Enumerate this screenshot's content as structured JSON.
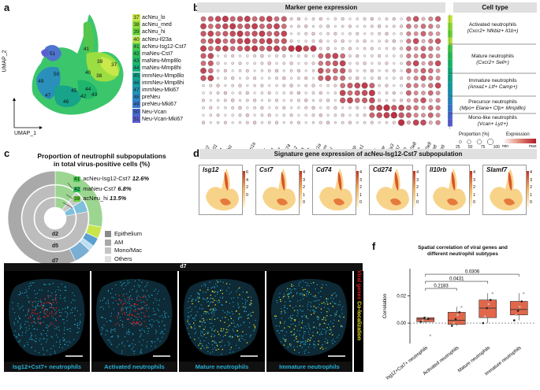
{
  "panels": {
    "a": "a",
    "b": "b",
    "c": "c",
    "d": "d",
    "e": "e",
    "f": "f"
  },
  "umap": {
    "xlabel": "UMAP_1",
    "ylabel": "UMAP_2",
    "clusters": [
      {
        "num": "37",
        "name": "acNeu_lo",
        "color": "#c8e64a"
      },
      {
        "num": "38",
        "name": "acNeu_med",
        "color": "#8fdc3e"
      },
      {
        "num": "39",
        "name": "acNeu_hi",
        "color": "#6bd43c"
      },
      {
        "num": "40",
        "name": "acNeu-Il23a",
        "color": "#b7e24a"
      },
      {
        "num": "41",
        "name": "acNeu-Isg12-Cst7",
        "color": "#48c850"
      },
      {
        "num": "42",
        "name": "maNeu-Cst7",
        "color": "#2fbd5a"
      },
      {
        "num": "43",
        "name": "maNeu-Mmp8lo",
        "color": "#20b86a"
      },
      {
        "num": "44",
        "name": "maNeu-Mmp8hi",
        "color": "#16ae7a"
      },
      {
        "num": "45",
        "name": "immNeu-Mmp8lo",
        "color": "#14a58c"
      },
      {
        "num": "46",
        "name": "immNeu-Mmp8hi",
        "color": "#1a9ea0"
      },
      {
        "num": "47",
        "name": "immNeu-Mki67",
        "color": "#2294b2"
      },
      {
        "num": "48",
        "name": "preNeu",
        "color": "#2d88c4"
      },
      {
        "num": "49",
        "name": "preNeu-Mki67",
        "color": "#3a78cc"
      },
      {
        "num": "50",
        "name": "Neu-Vcan",
        "color": "#4a6ad0"
      },
      {
        "num": "51",
        "name": "Neu-Vcan-Mki67",
        "color": "#5a5fd0"
      }
    ]
  },
  "dotplot": {
    "title": "Marker gene expression",
    "celltype_title": "Cell type",
    "genes": [
      "Cxcr2",
      "Cd101",
      "Ccl4",
      "Nfkbiz",
      "Il1b",
      "Fos",
      "Cdkn1a",
      "Tnf",
      "Il1rn",
      "Arg1",
      "Cst7",
      "Cd274",
      "Isg12",
      "Il23a",
      "Ccl3",
      "Fcgr1a",
      "Mgam",
      "Jaml",
      "Sell",
      "Ctlb",
      "Camp",
      "Anxa1",
      "Ltf",
      "Mpo",
      "Elane",
      "Ms4a3",
      "Mki67",
      "Vcan",
      "S100a8",
      "Lyz2",
      "S100a9",
      "Mmp8",
      "Mmp9"
    ],
    "celltypes": [
      {
        "name": "Activated neutrophils",
        "markers": "(Cxcr2+ Nfkbiz+ Il1b+)"
      },
      {
        "name": "Mature neutrophils",
        "markers": "(Cxcr2+ Sell+)"
      },
      {
        "name": "Immature neutrophils",
        "markers": "(Anxa1+ Ltf+ Camp+)"
      },
      {
        "name": "Precursor neutrophils",
        "markers": "(Mpo+ Elane+ Cfp+ Mmp8lo)"
      },
      {
        "name": "Mono-like neutrophils",
        "markers": "(Vcan+ Lyz+)"
      }
    ],
    "legend": {
      "proportion_title": "Proportion (%)",
      "proportion_ticks": [
        "25",
        "50",
        "75",
        "100"
      ],
      "expression_title": "Expression",
      "expr_min": "min",
      "expr_max": "max"
    }
  },
  "donut": {
    "title_line1": "Proportion of neutrophil subpopulations",
    "title_line2": "in total virus-positive cells (%)",
    "rings": [
      "d2",
      "d5",
      "d7"
    ],
    "callouts": [
      {
        "num": "41",
        "name": "acNeu-Isg12-Cst7",
        "value": "12.6%"
      },
      {
        "num": "42",
        "name": "maNeu-Cst7",
        "value": "6.8%"
      },
      {
        "num": "39",
        "name": "acNeu_hi",
        "value": "13.5%"
      }
    ],
    "others_legend": [
      {
        "label": "Epithelium",
        "color": "#8a8a8a"
      },
      {
        "label": "AM",
        "color": "#a8a8a8"
      },
      {
        "label": "Mono/Mac",
        "color": "#c4c4c4"
      },
      {
        "label": "Others",
        "color": "#dedede"
      }
    ]
  },
  "signature": {
    "title": "Signature gene expression of acNeu-Isg12-Cst7 subpopulation",
    "genes": [
      {
        "name": "Isg12",
        "ticks": [
          "6",
          "4",
          "2",
          "0"
        ]
      },
      {
        "name": "Cst7",
        "ticks": [
          "4",
          "3",
          "2",
          "1",
          "0"
        ]
      },
      {
        "name": "Cd74",
        "ticks": [
          "4",
          "3",
          "2",
          "1",
          "0"
        ]
      },
      {
        "name": "Cd274",
        "ticks": [
          "4",
          "3",
          "2",
          "1",
          "0"
        ]
      },
      {
        "name": "Il10rb",
        "ticks": [
          "4",
          "3",
          "2",
          "1",
          "0"
        ]
      },
      {
        "name": "Slamf7",
        "ticks": [
          "4",
          "3",
          "2",
          "1",
          "0"
        ]
      }
    ]
  },
  "microscopy": {
    "day": "d7",
    "panels": [
      "Isg12+Cst7+ neutrophils",
      "Activated neutrophils",
      "Mature neutrophils",
      "Immature neutrophils"
    ],
    "side_label_viral": "Viral genes",
    "side_label_coloc": "Co-localization"
  },
  "chart_data": {
    "type": "box",
    "title_line1": "Spatial correlation of viral genes and",
    "title_line2": "different neutrophil subtypes",
    "ylabel": "Correlation",
    "categories": [
      "Isg12+Cst7+ neutrophils",
      "Activated neutrophils",
      "Mature neutrophils",
      "Immature neutrophils"
    ],
    "ylim": [
      -0.015,
      0.04
    ],
    "yticks": [
      "0.00",
      "0.02"
    ],
    "yticks_values": [
      0.0,
      0.02
    ],
    "boxes": [
      {
        "q1": 0.001,
        "median": 0.003,
        "q3": 0.004,
        "min": 0.0,
        "max": 0.004
      },
      {
        "q1": -0.001,
        "median": 0.002,
        "q3": 0.008,
        "min": -0.002,
        "max": 0.012
      },
      {
        "q1": 0.004,
        "median": 0.011,
        "q3": 0.017,
        "min": 0.0,
        "max": 0.022
      },
      {
        "q1": 0.006,
        "median": 0.01,
        "q3": 0.016,
        "min": 0.002,
        "max": 0.022
      }
    ],
    "points": [
      [
        0.001,
        0.002,
        0.004,
        0.004,
        0.003,
        -0.009
      ],
      [
        -0.002,
        0.0,
        0.003,
        0.006,
        0.008,
        0.012
      ],
      [
        0.0,
        0.005,
        0.011,
        0.014,
        0.017,
        0.022
      ],
      [
        0.002,
        0.006,
        0.009,
        0.012,
        0.016,
        0.022
      ]
    ],
    "reference_line": 0.0,
    "pvalues": [
      {
        "label": "0.2183",
        "from": 1,
        "to": 2
      },
      {
        "label": "0.0431",
        "from": 1,
        "to": 3
      },
      {
        "label": "0.0306",
        "from": 1,
        "to": 4
      }
    ]
  }
}
